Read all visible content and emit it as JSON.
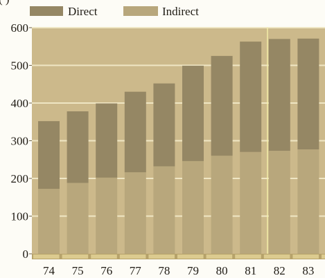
{
  "chart_data": {
    "type": "bar",
    "stacked": true,
    "categories": [
      "74",
      "75",
      "76",
      "77",
      "78",
      "79",
      "80",
      "81",
      "82",
      "83"
    ],
    "series": [
      {
        "name": "Indirect",
        "values": [
          172,
          188,
          202,
          216,
          232,
          246,
          260,
          270,
          273,
          277
        ]
      },
      {
        "name": "Direct",
        "values": [
          180,
          190,
          197,
          214,
          220,
          253,
          265,
          293,
          297,
          294
        ]
      }
    ],
    "yticks": [
      "0",
      "100",
      "200",
      "300",
      "400",
      "500",
      "600"
    ],
    "ylim": [
      0,
      600
    ],
    "grid": true,
    "legend_position": "top-left",
    "colors": {
      "plot_background": "#ccb98b",
      "indirect": "#b8a77c",
      "direct": "#958764",
      "gridline": "#efe6c4",
      "accent_line": "#f6f1a9",
      "baseline_strip": "#b6a26a",
      "baseline_seg": "#dccb8f"
    },
    "partial_top_label": "(                )"
  }
}
